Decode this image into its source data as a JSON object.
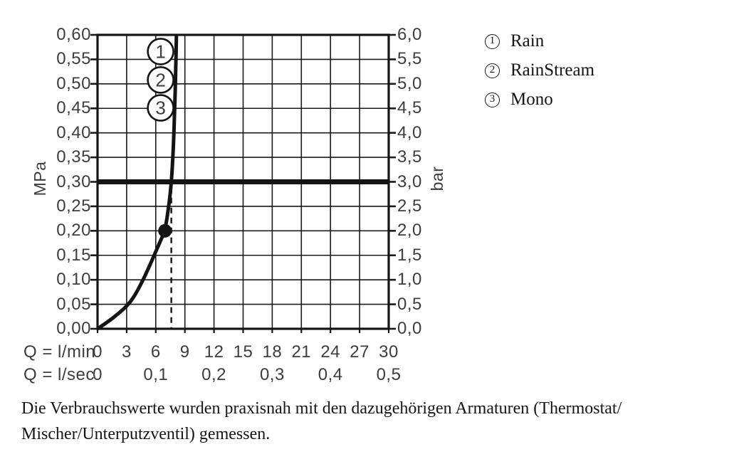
{
  "legend": {
    "items": [
      {
        "number": "1",
        "label": "Rain"
      },
      {
        "number": "2",
        "label": "RainStream"
      },
      {
        "number": "3",
        "label": "Mono"
      }
    ]
  },
  "caption": {
    "line1": "Die Verbrauchswerte wurden praxisnah mit den dazugehörigen Armaturen (Thermostat/",
    "line2": "Mischer/Unterputzventil) gemessen."
  },
  "chart_data": {
    "type": "line",
    "title": "",
    "grid": true,
    "xlim": [
      0,
      30
    ],
    "ylim": [
      0,
      0.6
    ],
    "x_axis": {
      "label_lmin": "Q = l/min",
      "ticks_lmin": [
        "0",
        "3",
        "6",
        "9",
        "12",
        "15",
        "18",
        "21",
        "24",
        "27",
        "30"
      ],
      "tick_step_lmin": 3,
      "label_lsec": "Q = l/sec",
      "ticks_lsec": [
        "0",
        "0,1",
        "0,2",
        "0,3",
        "0,4",
        "0,5"
      ],
      "tick_step_lsec_in_lmin": 6
    },
    "y_axis_left": {
      "unit": "MPa",
      "ticks": [
        "0,60",
        "0,55",
        "0,50",
        "0,45",
        "0,40",
        "0,35",
        "0,30",
        "0,25",
        "0,20",
        "0,15",
        "0,10",
        "0,05",
        "0,00"
      ],
      "tick_step": 0.05
    },
    "y_axis_right": {
      "unit": "bar",
      "ticks": [
        "6,0",
        "5,5",
        "5,0",
        "4,5",
        "4,0",
        "3,5",
        "3,0",
        "2,5",
        "2,0",
        "1,5",
        "1,0",
        "0,5",
        "0,0"
      ],
      "tick_step": 0.5
    },
    "series": [
      {
        "name": "flow-pressure-curve",
        "points_lmin_mpa": [
          [
            0,
            0
          ],
          [
            1.2,
            0.016
          ],
          [
            2.2,
            0.032
          ],
          [
            3,
            0.046
          ],
          [
            3.8,
            0.066
          ],
          [
            4.7,
            0.1
          ],
          [
            5.4,
            0.13
          ],
          [
            5.9,
            0.153
          ],
          [
            6.5,
            0.18
          ],
          [
            6.95,
            0.201
          ],
          [
            7.35,
            0.25
          ],
          [
            7.62,
            0.3
          ],
          [
            7.82,
            0.37
          ],
          [
            7.95,
            0.45
          ],
          [
            8.05,
            0.52
          ],
          [
            8.13,
            0.6
          ]
        ]
      }
    ],
    "pressure_reference_line_mpa": 0.3,
    "dashed_guide": {
      "x_lmin": 7.6,
      "y_top_mpa": 0.288
    },
    "operating_point_lmin_mpa": [
      6.95,
      0.2
    ],
    "curve_markers": [
      {
        "number": "1",
        "label": "Rain",
        "x_lmin": 6.5,
        "y_mpa": 0.566
      },
      {
        "number": "2",
        "label": "RainStream",
        "x_lmin": 6.5,
        "y_mpa": 0.508
      },
      {
        "number": "3",
        "label": "Mono",
        "x_lmin": 6.5,
        "y_mpa": 0.451
      }
    ]
  }
}
